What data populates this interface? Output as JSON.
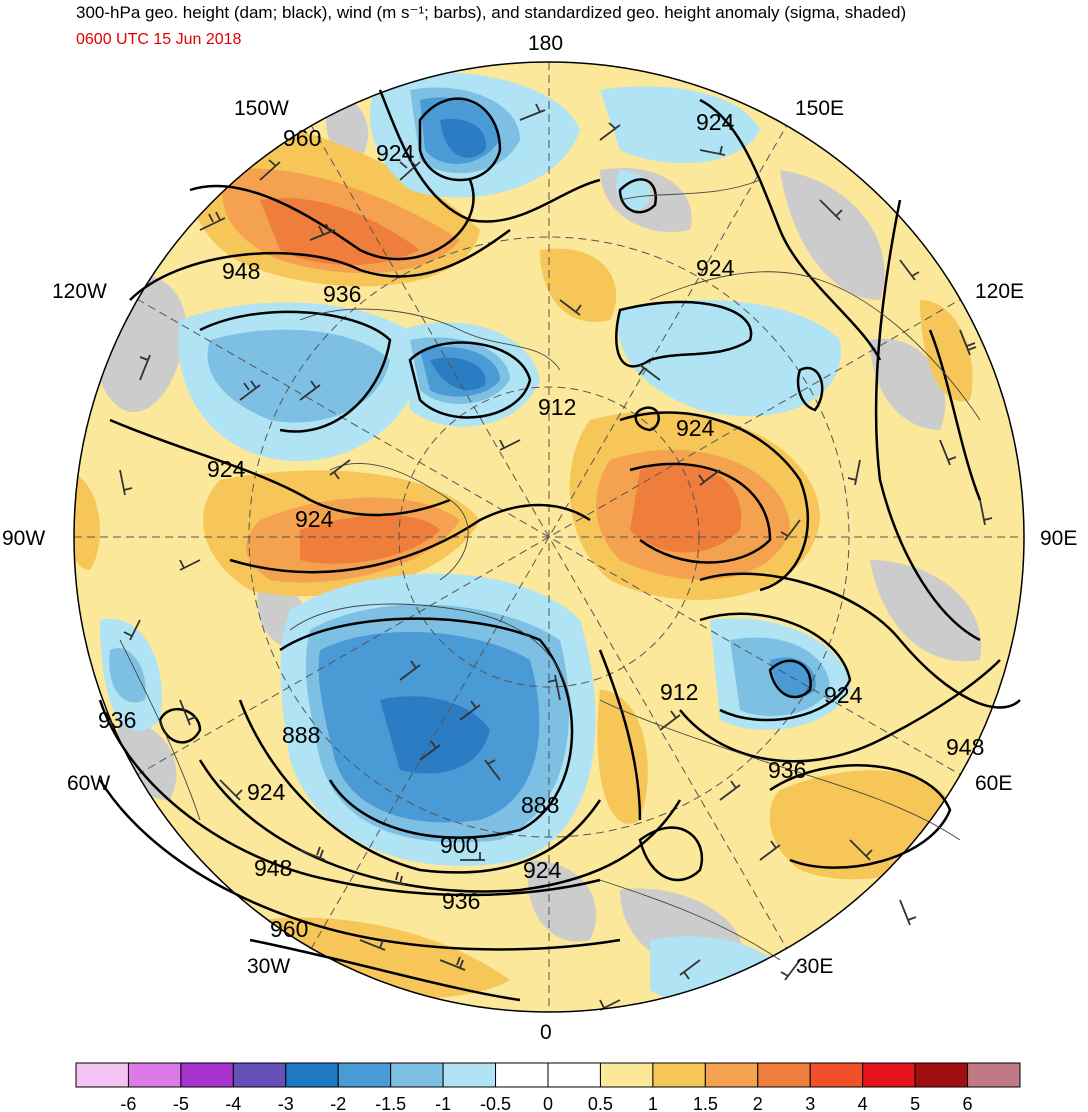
{
  "title": "300-hPa geo. height (dam; black), wind (m s⁻¹; barbs), and standardized geo. height anomaly (sigma, shaded)",
  "valid_time": "0600 UTC 15 Jun 2018",
  "projection": "north polar stereographic",
  "longitude_labels": {
    "top": "180",
    "bottom": "0",
    "left": "90W",
    "right": "90E",
    "ul_near": "150W",
    "ul_far": "120W",
    "ur_near": "150E",
    "ur_far": "120E",
    "ll_far": "60W",
    "ll_near": "30W",
    "lr_far": "60E",
    "lr_near": "30E"
  },
  "contour_labels": [
    "960",
    "924",
    "948",
    "936",
    "924",
    "924",
    "912",
    "924",
    "924",
    "924",
    "912",
    "924",
    "948",
    "936",
    "936",
    "888",
    "924",
    "888",
    "900",
    "924",
    "948",
    "936",
    "960"
  ],
  "colorbar": {
    "ticks": [
      "-6",
      "-5",
      "-4",
      "-3",
      "-2",
      "-1.5",
      "-1",
      "-0.5",
      "0",
      "0.5",
      "1",
      "1.5",
      "2",
      "3",
      "4",
      "5",
      "6"
    ],
    "colors": [
      "#f4c5f4",
      "#dd7ae8",
      "#a633cc",
      "#6651b8",
      "#1f78c4",
      "#4a9ad6",
      "#7ec0e4",
      "#b0e4f4",
      "#ffffff",
      "#ffffff",
      "#fbe89a",
      "#f6c758",
      "#f4a24f",
      "#ef7e3c",
      "#f2502b",
      "#e8141c",
      "#a10e10",
      "#c07a86"
    ]
  },
  "map_colors": {
    "neg_05": "#b0e4f4",
    "neg_1": "#7ec0e4",
    "neg_15": "#4a9ad6",
    "neg_2": "#2c7cc4",
    "pos_05": "#fbe89a",
    "pos_1": "#f6c758",
    "pos_15": "#f4a24f",
    "pos_2": "#ef7e3c",
    "terrain": "#cccccc"
  }
}
